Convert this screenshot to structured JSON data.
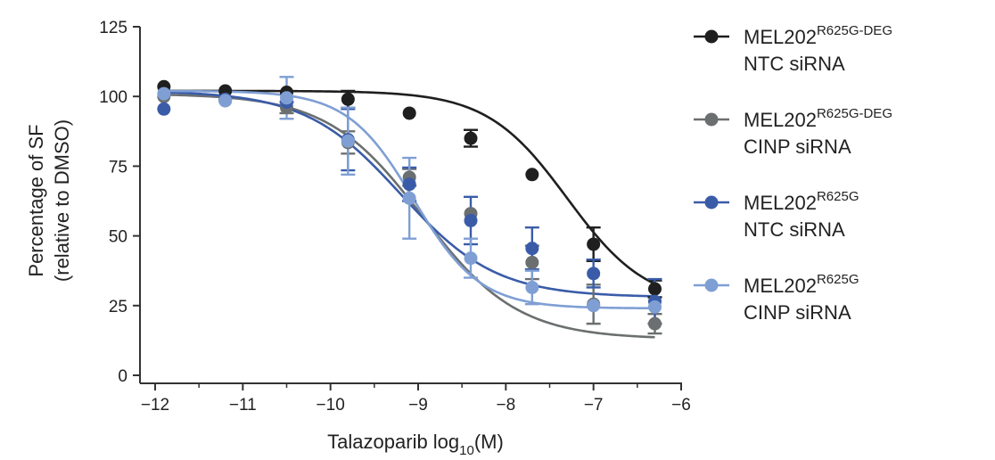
{
  "chart_data": {
    "type": "scatter",
    "xlabel_main": "Talazoparib log",
    "xlabel_sub": "10",
    "xlabel_end": "(M)",
    "ylabel_line1": "Percentage of SF",
    "ylabel_line2": "(relative to DMSO)",
    "xlim": [
      -12,
      -6
    ],
    "ylim": [
      0,
      125
    ],
    "x_ticks": [
      -12,
      -11,
      -10,
      -9,
      -8,
      -7,
      -6
    ],
    "x_tick_labels": [
      "−12",
      "−11",
      "−10",
      "−9",
      "−8",
      "−7",
      "−6"
    ],
    "y_ticks": [
      0,
      25,
      50,
      75,
      100,
      125
    ],
    "y_tick_labels": [
      "0",
      "25",
      "50",
      "75",
      "100",
      "125"
    ],
    "x": [
      -11.9,
      -11.2,
      -10.5,
      -9.8,
      -9.1,
      -8.4,
      -7.7,
      -7.0,
      -6.3
    ],
    "series": [
      {
        "name": "MEL202",
        "name_sup": "R625G-DEG",
        "name_line2": "NTC siRNA",
        "color": "#1f1f1f",
        "values": [
          103.5,
          102,
          101.5,
          99,
          94,
          85,
          72,
          47,
          31
        ],
        "errors": [
          0,
          0,
          0,
          3,
          0,
          3,
          0,
          6,
          3
        ],
        "curve": {
          "top": 102,
          "bottom": 25,
          "log_ic50": -7.3,
          "hill": 0.95
        }
      },
      {
        "name": "MEL202",
        "name_sup": "R625G-DEG",
        "name_line2": "CINP siRNA",
        "color": "#6b6f70",
        "values": [
          100,
          98.5,
          96,
          83.5,
          71,
          58,
          40.5,
          25.5,
          18.5
        ],
        "errors": [
          0,
          0,
          2,
          4,
          3,
          0,
          6,
          7,
          3.5
        ],
        "curve": {
          "top": 101,
          "bottom": 13,
          "log_ic50": -8.95,
          "hill": 0.8
        }
      },
      {
        "name": "MEL202",
        "name_sup": "R625G",
        "name_line2": "NTC siRNA",
        "color": "#3a5ca8",
        "values": [
          95.5,
          99,
          98,
          84.5,
          68.5,
          55.5,
          45.5,
          36.5,
          26.5
        ],
        "errors": [
          0,
          0,
          0,
          11,
          6,
          8.5,
          7.5,
          5,
          8
        ],
        "curve": {
          "top": 102,
          "bottom": 28,
          "log_ic50": -9.2,
          "hill": 0.8
        }
      },
      {
        "name": "MEL202",
        "name_sup": "R625G",
        "name_line2": "CINP siRNA",
        "color": "#7f9fd4",
        "values": [
          101,
          98.5,
          99.5,
          84,
          63.5,
          42,
          31.5,
          25,
          24.5
        ],
        "errors": [
          0,
          0,
          7.5,
          12,
          14.5,
          7,
          6,
          0,
          0
        ],
        "curve": {
          "top": 102,
          "bottom": 24,
          "log_ic50": -9.05,
          "hill": 1.15
        }
      }
    ]
  }
}
